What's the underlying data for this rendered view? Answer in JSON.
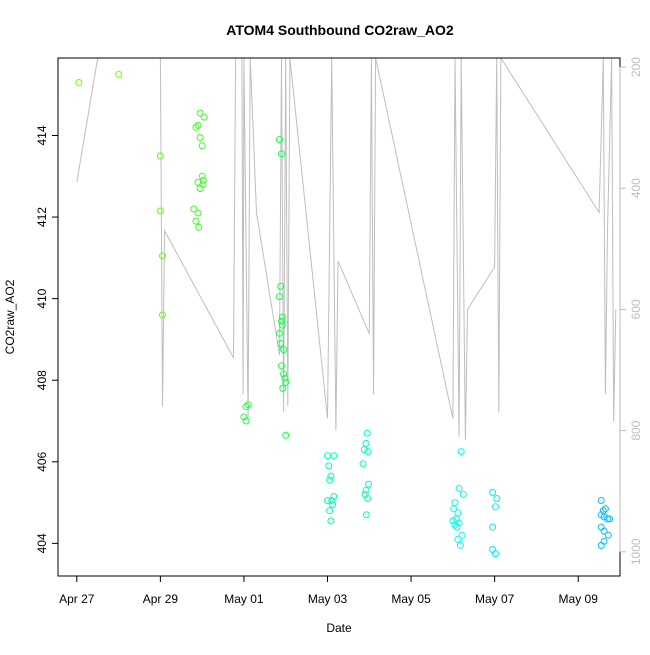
{
  "chart_data": {
    "type": "scatter",
    "title": "ATOM4 Southbound CO2raw_AO2",
    "xlabel": "Date",
    "ylabel": "CO2raw_AO2",
    "x_ticks": [
      "Apr 27",
      "Apr 29",
      "May 01",
      "May 03",
      "May 05",
      "May 07",
      "May 09"
    ],
    "x_tick_values": [
      0,
      2,
      4,
      6,
      8,
      10,
      12
    ],
    "xlim": [
      -0.45,
      13.0
    ],
    "y_ticks": [
      404,
      406,
      408,
      410,
      412,
      414
    ],
    "ylim": [
      403.2,
      415.9
    ],
    "y2_ticks": [
      200,
      400,
      600,
      800,
      1000
    ],
    "y2lim": [
      1040,
      185
    ],
    "y2_reversed": true,
    "grid": false,
    "line_color": "#bebebe",
    "points": [
      {
        "x": 0.05,
        "y": 415.3,
        "color": "#7CFC00"
      },
      {
        "x": 1.0,
        "y": 415.5,
        "color": "#7CFC00"
      },
      {
        "x": 2.0,
        "y": 413.5,
        "color": "#5CFF10"
      },
      {
        "x": 2.0,
        "y": 412.15,
        "color": "#5CFF10"
      },
      {
        "x": 2.05,
        "y": 411.05,
        "color": "#5CFF10"
      },
      {
        "x": 2.05,
        "y": 409.6,
        "color": "#5CFF10"
      },
      {
        "x": 2.85,
        "y": 414.2,
        "color": "#3CFF20"
      },
      {
        "x": 2.9,
        "y": 414.25,
        "color": "#3CFF20"
      },
      {
        "x": 2.95,
        "y": 414.55,
        "color": "#3CFF20"
      },
      {
        "x": 3.05,
        "y": 414.45,
        "color": "#3CFF20"
      },
      {
        "x": 2.95,
        "y": 413.95,
        "color": "#3CFF20"
      },
      {
        "x": 3.0,
        "y": 413.75,
        "color": "#3CFF20"
      },
      {
        "x": 3.0,
        "y": 413.0,
        "color": "#3CFF20"
      },
      {
        "x": 3.03,
        "y": 412.9,
        "color": "#3CFF20"
      },
      {
        "x": 2.9,
        "y": 412.85,
        "color": "#3CFF20"
      },
      {
        "x": 3.02,
        "y": 412.8,
        "color": "#3CFF20"
      },
      {
        "x": 2.95,
        "y": 412.7,
        "color": "#3CFF20"
      },
      {
        "x": 2.8,
        "y": 412.2,
        "color": "#3CFF20"
      },
      {
        "x": 2.9,
        "y": 412.1,
        "color": "#3CFF20"
      },
      {
        "x": 2.85,
        "y": 411.9,
        "color": "#3CFF20"
      },
      {
        "x": 2.92,
        "y": 411.75,
        "color": "#3CFF20"
      },
      {
        "x": 4.05,
        "y": 407.35,
        "color": "#20FF40"
      },
      {
        "x": 4.1,
        "y": 407.4,
        "color": "#20FF40"
      },
      {
        "x": 4.0,
        "y": 407.1,
        "color": "#20FF40"
      },
      {
        "x": 4.05,
        "y": 407.0,
        "color": "#20FF40"
      },
      {
        "x": 4.85,
        "y": 413.9,
        "color": "#15FF45"
      },
      {
        "x": 4.9,
        "y": 413.55,
        "color": "#15FF45"
      },
      {
        "x": 4.88,
        "y": 410.3,
        "color": "#15FF45"
      },
      {
        "x": 4.85,
        "y": 410.05,
        "color": "#15FF45"
      },
      {
        "x": 4.92,
        "y": 409.55,
        "color": "#15FF45"
      },
      {
        "x": 4.9,
        "y": 409.45,
        "color": "#15FF45"
      },
      {
        "x": 4.92,
        "y": 409.35,
        "color": "#15FF45"
      },
      {
        "x": 4.85,
        "y": 409.15,
        "color": "#15FF45"
      },
      {
        "x": 4.88,
        "y": 408.9,
        "color": "#15FF45"
      },
      {
        "x": 4.95,
        "y": 408.75,
        "color": "#15FF45"
      },
      {
        "x": 4.9,
        "y": 408.35,
        "color": "#15FF45"
      },
      {
        "x": 4.95,
        "y": 408.15,
        "color": "#15FF45"
      },
      {
        "x": 4.98,
        "y": 408.05,
        "color": "#15FF45"
      },
      {
        "x": 5.0,
        "y": 407.95,
        "color": "#15FF45"
      },
      {
        "x": 4.93,
        "y": 407.8,
        "color": "#15FF45"
      },
      {
        "x": 5.0,
        "y": 406.65,
        "color": "#15FF45"
      },
      {
        "x": 6.0,
        "y": 406.15,
        "color": "#00FFB0"
      },
      {
        "x": 6.15,
        "y": 406.15,
        "color": "#00FFB0"
      },
      {
        "x": 6.03,
        "y": 405.9,
        "color": "#00FFB0"
      },
      {
        "x": 6.08,
        "y": 405.65,
        "color": "#00FFB0"
      },
      {
        "x": 6.05,
        "y": 405.55,
        "color": "#00FFB0"
      },
      {
        "x": 6.15,
        "y": 405.15,
        "color": "#00FFB0"
      },
      {
        "x": 6.0,
        "y": 405.05,
        "color": "#00FFB0"
      },
      {
        "x": 6.1,
        "y": 405.05,
        "color": "#00FFB0"
      },
      {
        "x": 6.12,
        "y": 404.95,
        "color": "#00FFB0"
      },
      {
        "x": 6.05,
        "y": 404.8,
        "color": "#00FFB0"
      },
      {
        "x": 6.08,
        "y": 404.55,
        "color": "#00FFB0"
      },
      {
        "x": 6.95,
        "y": 406.7,
        "color": "#00FFC0"
      },
      {
        "x": 6.92,
        "y": 406.45,
        "color": "#00FFC0"
      },
      {
        "x": 6.88,
        "y": 406.3,
        "color": "#00FFC0"
      },
      {
        "x": 6.97,
        "y": 406.25,
        "color": "#00FFC0"
      },
      {
        "x": 6.85,
        "y": 405.95,
        "color": "#00FFC0"
      },
      {
        "x": 6.98,
        "y": 405.45,
        "color": "#00FFC0"
      },
      {
        "x": 6.92,
        "y": 405.3,
        "color": "#00FFC0"
      },
      {
        "x": 6.9,
        "y": 405.2,
        "color": "#00FFC0"
      },
      {
        "x": 6.96,
        "y": 405.1,
        "color": "#00FFC0"
      },
      {
        "x": 6.93,
        "y": 404.7,
        "color": "#00FFC0"
      },
      {
        "x": 9.2,
        "y": 406.25,
        "color": "#00FFE8"
      },
      {
        "x": 9.15,
        "y": 405.35,
        "color": "#00FFE8"
      },
      {
        "x": 9.25,
        "y": 405.2,
        "color": "#00FFE8"
      },
      {
        "x": 9.05,
        "y": 405.0,
        "color": "#00FFE8"
      },
      {
        "x": 9.02,
        "y": 404.85,
        "color": "#00FFE8"
      },
      {
        "x": 9.12,
        "y": 404.75,
        "color": "#00FFE8"
      },
      {
        "x": 9.08,
        "y": 404.6,
        "color": "#00FFE8"
      },
      {
        "x": 9.0,
        "y": 404.55,
        "color": "#00FFE8"
      },
      {
        "x": 9.15,
        "y": 404.5,
        "color": "#00FFE8"
      },
      {
        "x": 9.05,
        "y": 404.45,
        "color": "#00FFE8"
      },
      {
        "x": 9.1,
        "y": 404.4,
        "color": "#00FFE8"
      },
      {
        "x": 9.22,
        "y": 404.2,
        "color": "#00FFE8"
      },
      {
        "x": 9.12,
        "y": 404.1,
        "color": "#00FFE8"
      },
      {
        "x": 9.18,
        "y": 403.95,
        "color": "#00FFE8"
      },
      {
        "x": 9.95,
        "y": 405.25,
        "color": "#00F0F5"
      },
      {
        "x": 10.05,
        "y": 405.1,
        "color": "#00F0F5"
      },
      {
        "x": 10.02,
        "y": 404.9,
        "color": "#00F0F5"
      },
      {
        "x": 9.95,
        "y": 404.4,
        "color": "#00F0F5"
      },
      {
        "x": 9.95,
        "y": 403.85,
        "color": "#00F0F5"
      },
      {
        "x": 10.02,
        "y": 403.75,
        "color": "#00F0F5"
      },
      {
        "x": 12.55,
        "y": 405.05,
        "color": "#00BFFF"
      },
      {
        "x": 12.65,
        "y": 404.85,
        "color": "#00BFFF"
      },
      {
        "x": 12.6,
        "y": 404.8,
        "color": "#00BFFF"
      },
      {
        "x": 12.55,
        "y": 404.7,
        "color": "#00BFFF"
      },
      {
        "x": 12.62,
        "y": 404.65,
        "color": "#00BFFF"
      },
      {
        "x": 12.7,
        "y": 404.6,
        "color": "#00BFFF"
      },
      {
        "x": 12.75,
        "y": 404.6,
        "color": "#00BFFF"
      },
      {
        "x": 12.55,
        "y": 404.4,
        "color": "#00BFFF"
      },
      {
        "x": 12.62,
        "y": 404.3,
        "color": "#00BFFF"
      },
      {
        "x": 12.72,
        "y": 404.2,
        "color": "#00BFFF"
      },
      {
        "x": 12.62,
        "y": 404.05,
        "color": "#00BFFF"
      },
      {
        "x": 12.55,
        "y": 403.95,
        "color": "#00BFFF"
      }
    ],
    "secondary_line": [
      [
        0.0,
        390
      ],
      [
        0.5,
        100
      ],
      [
        2.0,
        100
      ],
      [
        2.05,
        760
      ],
      [
        2.1,
        470
      ],
      [
        3.75,
        680
      ],
      [
        3.8,
        100
      ],
      [
        3.95,
        100
      ],
      [
        3.98,
        740
      ],
      [
        4.0,
        100
      ],
      [
        4.1,
        780
      ],
      [
        4.15,
        100
      ],
      [
        4.3,
        440
      ],
      [
        4.85,
        675
      ],
      [
        4.9,
        100
      ],
      [
        4.95,
        770
      ],
      [
        5.0,
        100
      ],
      [
        5.05,
        760
      ],
      [
        5.1,
        100
      ],
      [
        6.0,
        780
      ],
      [
        6.1,
        100
      ],
      [
        6.2,
        800
      ],
      [
        6.25,
        520
      ],
      [
        7.0,
        640
      ],
      [
        7.05,
        100
      ],
      [
        7.1,
        740
      ],
      [
        7.15,
        100
      ],
      [
        9.0,
        780
      ],
      [
        9.05,
        100
      ],
      [
        9.15,
        810
      ],
      [
        9.2,
        100
      ],
      [
        9.3,
        815
      ],
      [
        9.35,
        600
      ],
      [
        10.0,
        530
      ],
      [
        10.05,
        100
      ],
      [
        10.1,
        770
      ],
      [
        10.15,
        100
      ],
      [
        12.5,
        440
      ],
      [
        12.6,
        100
      ],
      [
        12.65,
        740
      ],
      [
        12.7,
        470
      ],
      [
        12.8,
        100
      ],
      [
        12.85,
        785
      ],
      [
        12.9,
        600
      ]
    ]
  }
}
